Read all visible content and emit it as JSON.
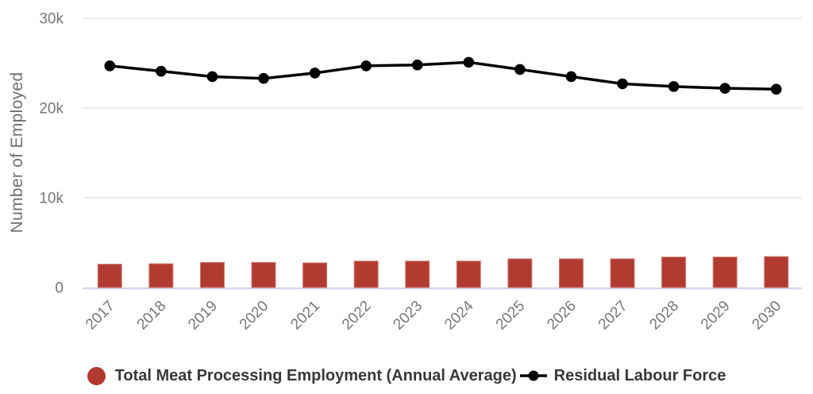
{
  "chart_data": {
    "type": "combo-bar-line",
    "categories": [
      "2017",
      "2018",
      "2019",
      "2020",
      "2021",
      "2022",
      "2023",
      "2024",
      "2025",
      "2026",
      "2027",
      "2028",
      "2029",
      "2030"
    ],
    "series": [
      {
        "name": "Total Meat Processing Employment (Annual Average)",
        "type": "bar",
        "color": "#b23b31",
        "edge_color": "#ce7a6e",
        "values": [
          2600,
          2650,
          2800,
          2800,
          2750,
          2950,
          2950,
          2950,
          3200,
          3200,
          3200,
          3400,
          3400,
          3450
        ]
      },
      {
        "name": "Residual Labour Force",
        "type": "line",
        "color": "#000000",
        "values": [
          24700,
          24100,
          23500,
          23300,
          23900,
          24700,
          24800,
          25100,
          24300,
          23500,
          22700,
          22400,
          22200,
          22100
        ]
      }
    ],
    "title": "",
    "xlabel": "",
    "ylabel": "Number of Employed",
    "ylim": [
      0,
      30000
    ],
    "y_ticks": [
      {
        "value": 0,
        "label": "0"
      },
      {
        "value": 10000,
        "label": "10k"
      },
      {
        "value": 20000,
        "label": "20k"
      },
      {
        "value": 30000,
        "label": "30k"
      }
    ],
    "grid": true,
    "legend_position": "bottom",
    "grid_color": "#ececec",
    "baseline_color": "#d3d8ee",
    "tick_label_color": "#777777"
  }
}
